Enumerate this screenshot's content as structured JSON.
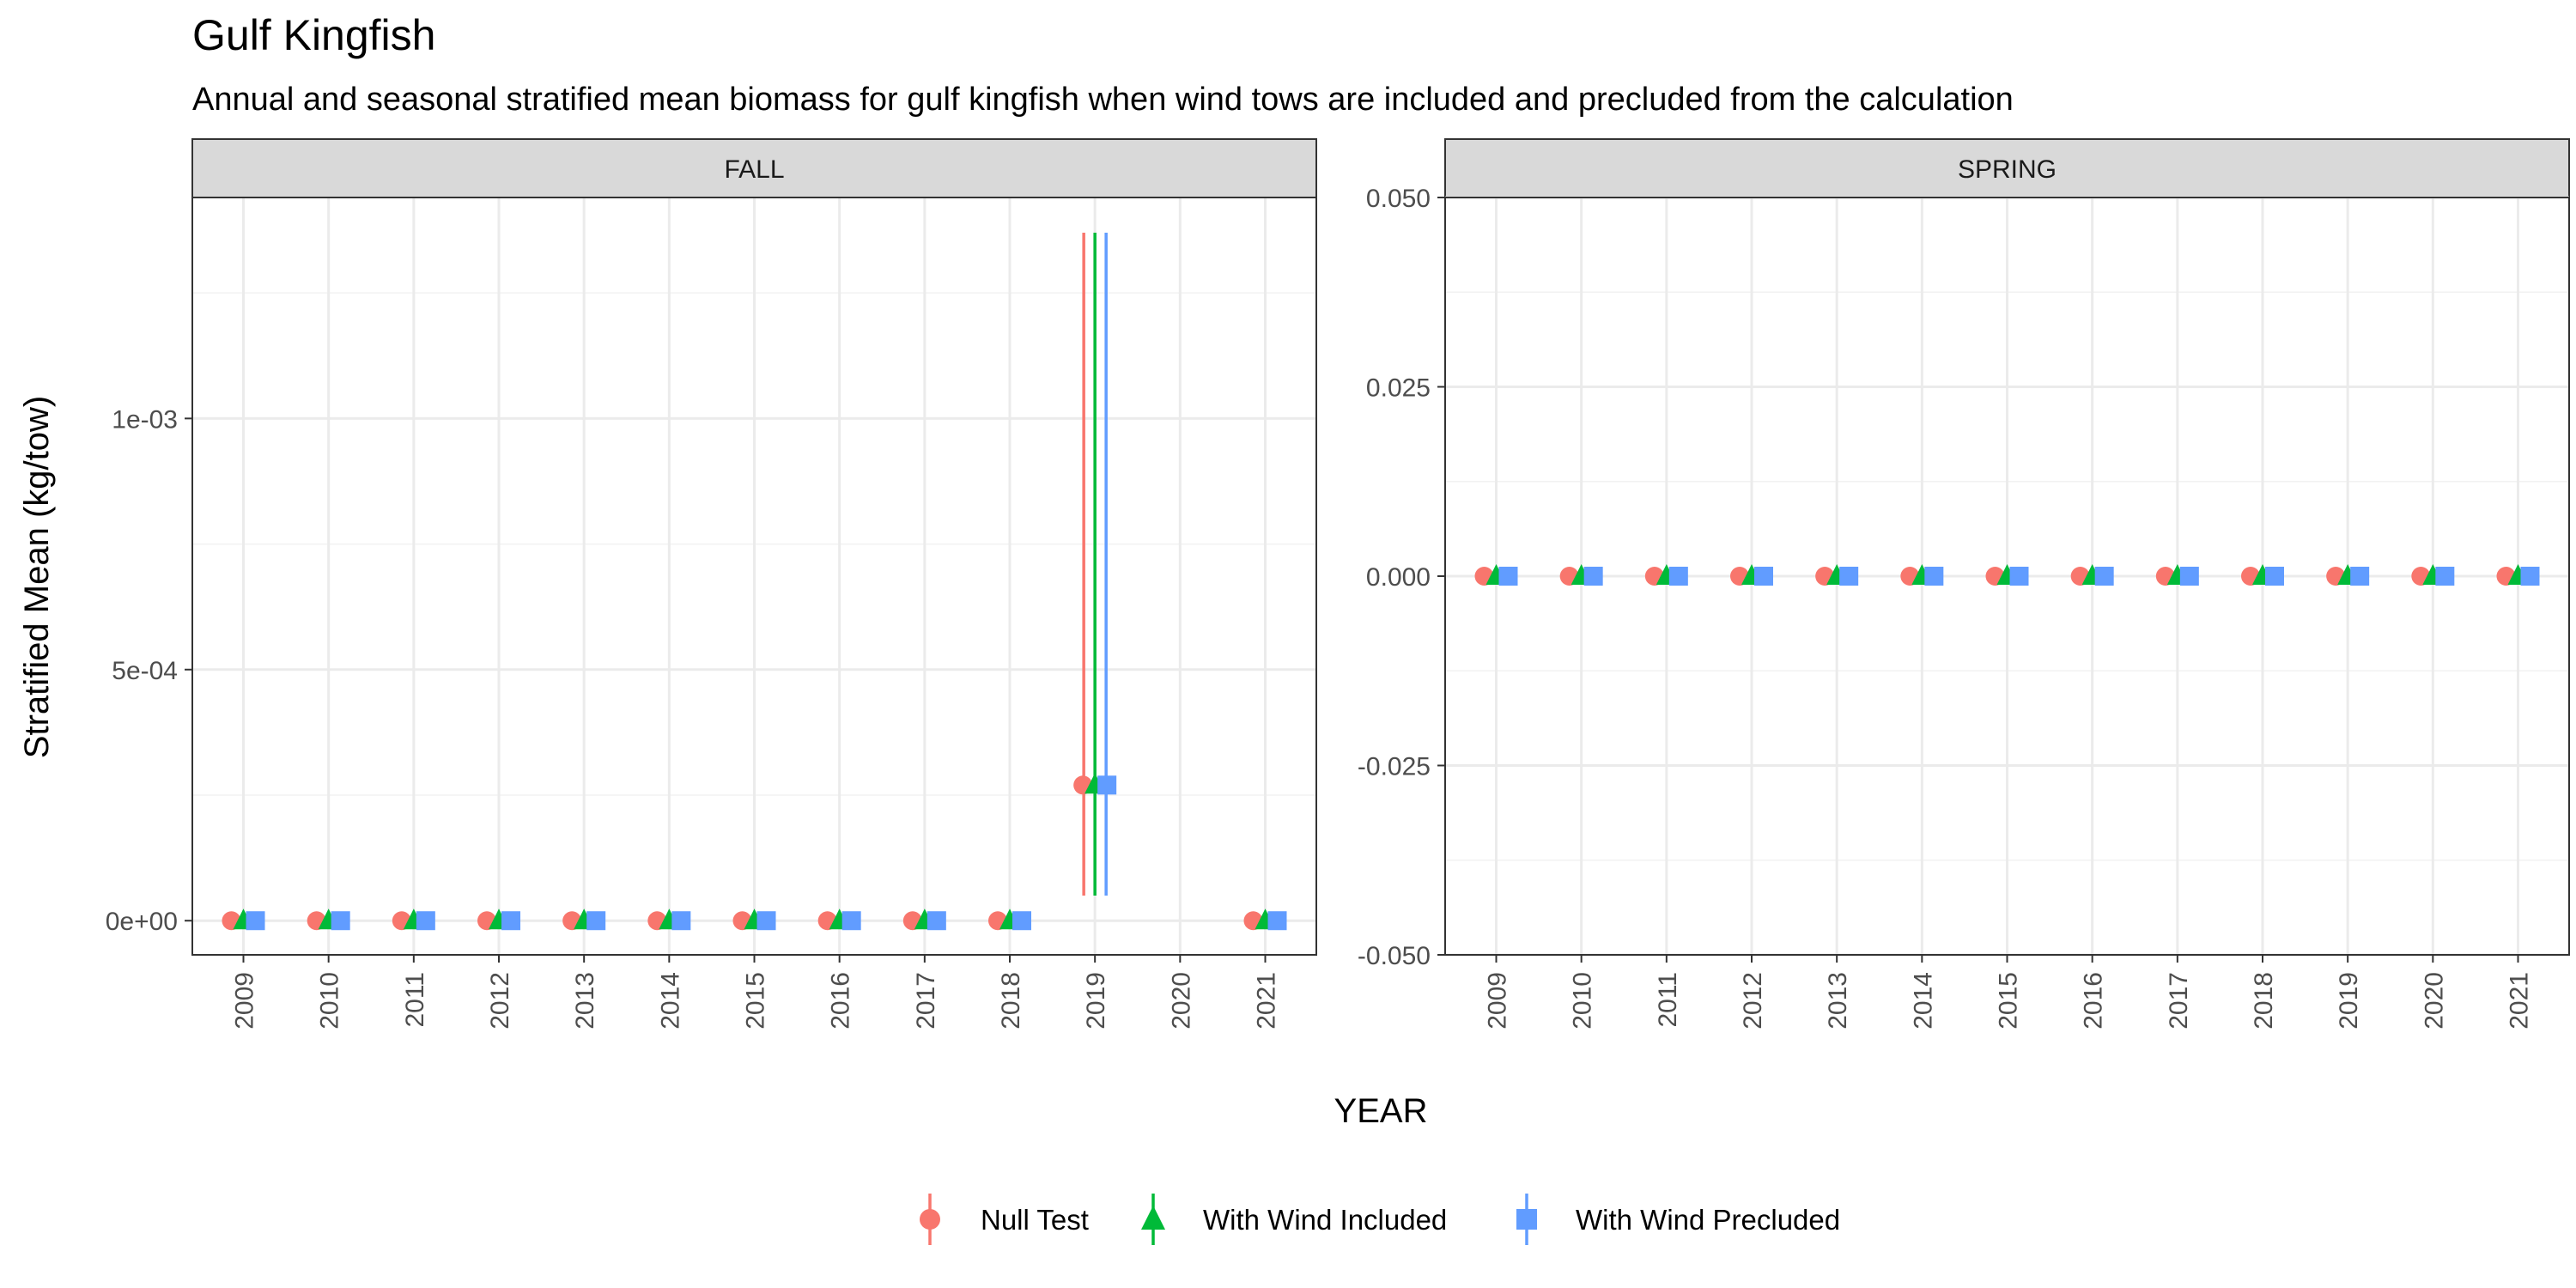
{
  "title": "Gulf Kingfish",
  "subtitle": "Annual and seasonal stratified mean biomass for gulf kingfish when wind tows are included and precluded from the calculation",
  "chart_data": {
    "type": "scatter",
    "xlabel": "YEAR",
    "ylabel": "Stratified Mean (kg/tow)",
    "legend_position": "bottom",
    "grid": true,
    "series": [
      {
        "name": "Null Test",
        "color": "#F8766D",
        "shape": "circle"
      },
      {
        "name": "With Wind Included",
        "color": "#00BA38",
        "shape": "triangle"
      },
      {
        "name": "With Wind Precluded",
        "color": "#619CFF",
        "shape": "square"
      }
    ],
    "panels": [
      {
        "label": "FALL",
        "years": [
          2009,
          2010,
          2011,
          2012,
          2013,
          2014,
          2015,
          2016,
          2017,
          2018,
          2019,
          2020,
          2021
        ],
        "ylim": [
          -6.8e-05,
          0.00144
        ],
        "yticks": [
          0,
          0.0005,
          0.001
        ],
        "yticklabels": [
          "0e+00",
          "5e-04",
          "1e-03"
        ],
        "values": {
          "Null Test": [
            0,
            0,
            0,
            0,
            0,
            0,
            0,
            0,
            0,
            0,
            0.00027,
            null,
            0
          ],
          "With Wind Included": [
            0,
            0,
            0,
            0,
            0,
            0,
            0,
            0,
            0,
            0,
            0.00027,
            null,
            0
          ],
          "With Wind Precluded": [
            0,
            0,
            0,
            0,
            0,
            0,
            0,
            0,
            0,
            0,
            0.00027,
            null,
            0
          ]
        },
        "error_bars": {
          "Null Test": {
            "2019": [
              5e-05,
              0.00137
            ]
          },
          "With Wind Included": {
            "2019": [
              5e-05,
              0.00137
            ]
          },
          "With Wind Precluded": {
            "2019": [
              5e-05,
              0.00137
            ]
          }
        }
      },
      {
        "label": "SPRING",
        "years": [
          2009,
          2010,
          2011,
          2012,
          2013,
          2014,
          2015,
          2016,
          2017,
          2018,
          2019,
          2020,
          2021
        ],
        "ylim": [
          -0.05,
          0.05
        ],
        "yticks": [
          -0.05,
          -0.025,
          0,
          0.025,
          0.05
        ],
        "yticklabels": [
          "-0.050",
          "-0.025",
          "0.000",
          "0.025",
          "0.050"
        ],
        "values": {
          "Null Test": [
            0,
            0,
            0,
            0,
            0,
            0,
            0,
            0,
            0,
            0,
            0,
            0,
            0
          ],
          "With Wind Included": [
            0,
            0,
            0,
            0,
            0,
            0,
            0,
            0,
            0,
            0,
            0,
            0,
            0
          ],
          "With Wind Precluded": [
            0,
            0,
            0,
            0,
            0,
            0,
            0,
            0,
            0,
            0,
            0,
            0,
            0
          ]
        },
        "error_bars": {}
      }
    ]
  }
}
